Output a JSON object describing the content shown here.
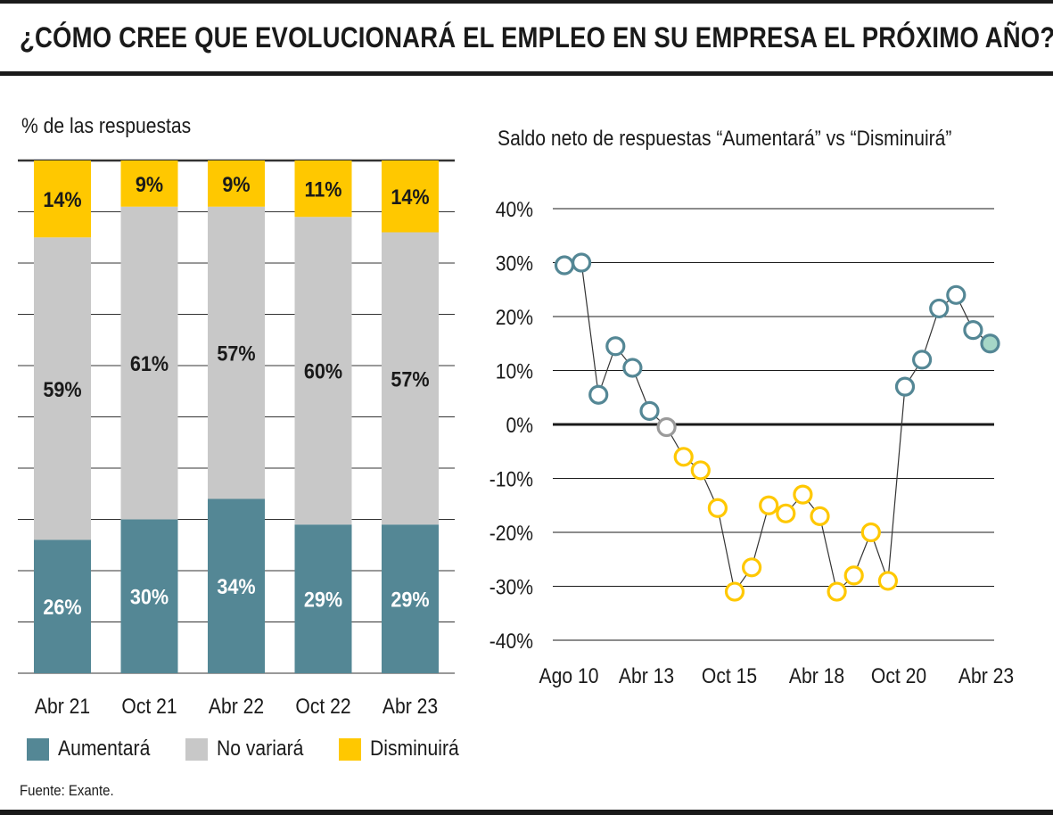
{
  "title": "¿CÓMO CREE QUE EVOLUCIONARÁ EL EMPLEO EN SU EMPRESA EL PRÓXIMO AÑO?",
  "source": "Fuente: Exante.",
  "colors": {
    "aumentara": "#548795",
    "no_variara": "#c8c8c8",
    "disminuira": "#ffc800",
    "gray_point": "#9a9a9a",
    "last_point_fill": "#a6d7c7"
  },
  "chart_data": [
    {
      "type": "bar",
      "stacked": true,
      "title": "% de las respuestas",
      "categories": [
        "Abr 21",
        "Oct 21",
        "Abr 22",
        "Oct 22",
        "Abr 23"
      ],
      "series": [
        {
          "name": "Aumentará",
          "values": [
            26,
            30,
            34,
            29,
            29
          ],
          "labels": [
            "26%",
            "30%",
            "34%",
            "29%",
            "29%"
          ]
        },
        {
          "name": "No variará",
          "values": [
            59,
            61,
            57,
            60,
            57
          ],
          "labels": [
            "59%",
            "61%",
            "57%",
            "60%",
            "57%"
          ]
        },
        {
          "name": "Disminuirá",
          "values": [
            14,
            9,
            9,
            11,
            14
          ],
          "labels": [
            "14%",
            "9%",
            "9%",
            "11%",
            "14%"
          ]
        }
      ],
      "ylim": [
        0,
        100
      ],
      "grid": true,
      "legend": "bottom"
    },
    {
      "type": "line",
      "title": "Saldo neto de respuestas “Aumentará” vs “Disminuirá”",
      "x_tick_labels": [
        "Ago 10",
        "Abr 13",
        "Oct 15",
        "Abr 18",
        "Oct 20",
        "Abr 23"
      ],
      "y_tick_labels": [
        "40%",
        "30%",
        "20%",
        "10%",
        "0%",
        "-10%",
        "-20%",
        "-30%",
        "-40%"
      ],
      "ylim": [
        -40,
        40
      ],
      "grid": true,
      "series": [
        {
          "values": [
            29.5,
            30,
            5.5,
            14.5,
            10.5,
            2.5,
            -0.5,
            -6,
            -8.5,
            -15.5,
            -31,
            -26.5,
            -15,
            -16.5,
            -13,
            -17,
            -31,
            -28,
            -20,
            -29,
            7,
            12,
            21.5,
            24,
            17.5,
            15
          ]
        }
      ]
    }
  ]
}
